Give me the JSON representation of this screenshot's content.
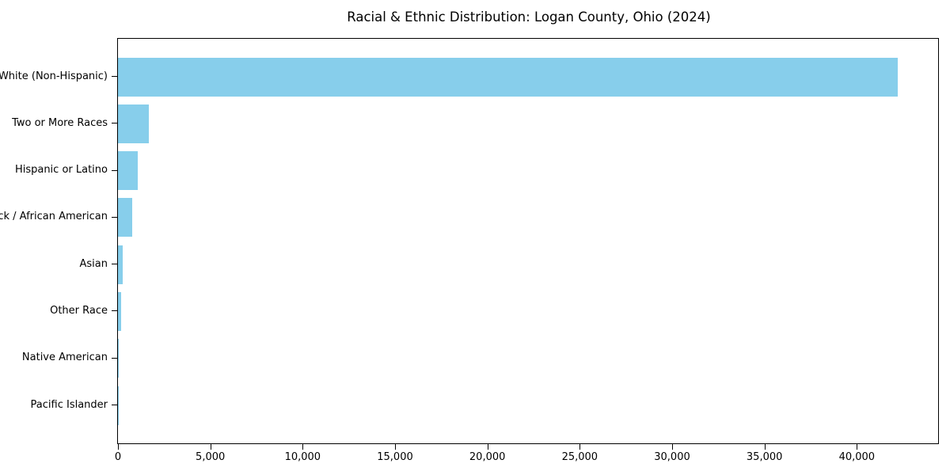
{
  "chart_data": {
    "type": "bar",
    "orientation": "horizontal",
    "title": "Racial & Ethnic Distribution: Logan County, Ohio (2024)",
    "xlabel": "",
    "ylabel": "",
    "categories": [
      "White (Non-Hispanic)",
      "Two or More Races",
      "Hispanic or Latino",
      "Black / African American",
      "Asian",
      "Other Race",
      "Native American",
      "Pacific Islander"
    ],
    "values": [
      42200,
      1650,
      1080,
      760,
      275,
      165,
      30,
      10
    ],
    "xlim": [
      0,
      44400
    ],
    "x_ticks": [
      0,
      5000,
      10000,
      15000,
      20000,
      25000,
      30000,
      35000,
      40000
    ],
    "x_tick_labels": [
      "0",
      "5,000",
      "10,000",
      "15,000",
      "20,000",
      "25,000",
      "30,000",
      "35,000",
      "40,000"
    ],
    "bar_color": "#87CEEB",
    "spine_color": "#000000",
    "grid": false,
    "legend": null
  }
}
